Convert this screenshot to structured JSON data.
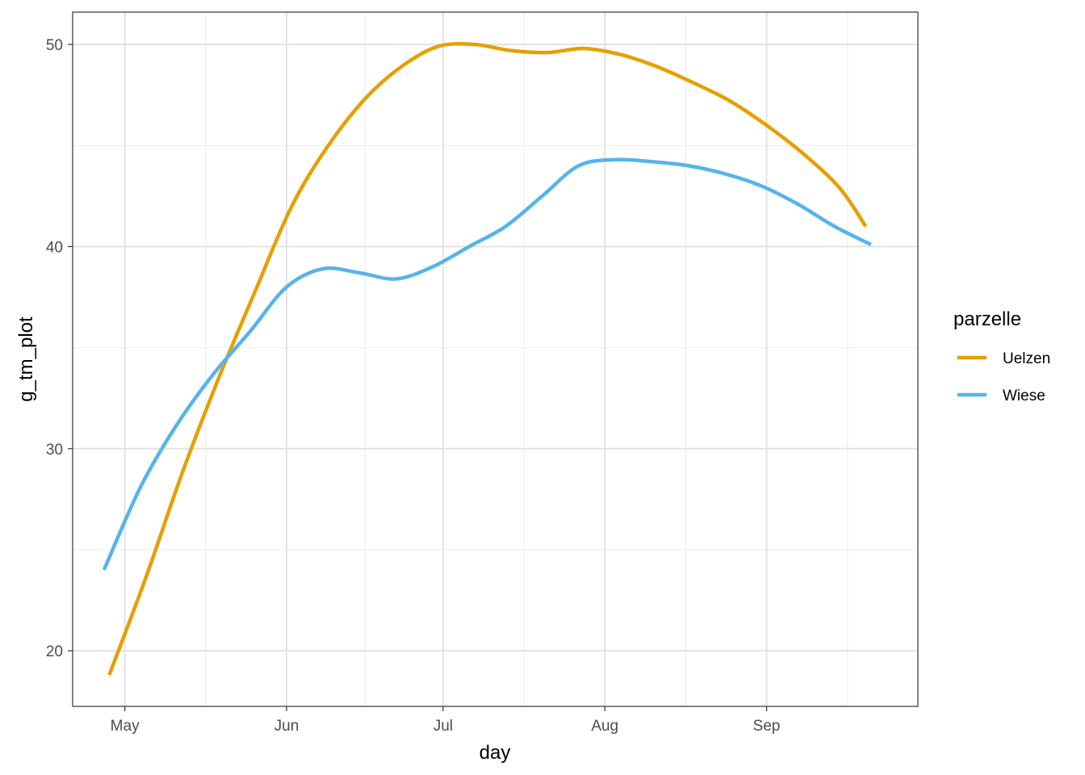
{
  "chart_data": {
    "type": "line",
    "xlabel": "day",
    "ylabel": "g_tm_plot",
    "x_type": "date",
    "x_ticks": [
      {
        "date": "2022-05-01",
        "label": "May"
      },
      {
        "date": "2022-06-01",
        "label": "Jun"
      },
      {
        "date": "2022-07-01",
        "label": "Jul"
      },
      {
        "date": "2022-08-01",
        "label": "Aug"
      },
      {
        "date": "2022-09-01",
        "label": "Sep"
      }
    ],
    "xlim": [
      "2022-04-21",
      "2022-09-30"
    ],
    "y_ticks": [
      20,
      30,
      40,
      50
    ],
    "ylim": [
      17.25,
      51.6
    ],
    "grid": true,
    "legend": {
      "title": "parzelle",
      "position": "right"
    },
    "series": [
      {
        "name": "Uelzen",
        "color": "#E69F00",
        "points": [
          [
            "2022-04-28",
            18.8
          ],
          [
            "2022-05-05",
            23.6
          ],
          [
            "2022-05-12",
            28.8
          ],
          [
            "2022-05-19",
            33.5
          ],
          [
            "2022-05-26",
            37.8
          ],
          [
            "2022-06-02",
            42.0
          ],
          [
            "2022-06-09",
            45.0
          ],
          [
            "2022-06-16",
            47.3
          ],
          [
            "2022-06-23",
            48.9
          ],
          [
            "2022-06-30",
            49.9
          ],
          [
            "2022-07-07",
            50.0
          ],
          [
            "2022-07-14",
            49.7
          ],
          [
            "2022-07-21",
            49.6
          ],
          [
            "2022-07-28",
            49.8
          ],
          [
            "2022-08-04",
            49.5
          ],
          [
            "2022-08-11",
            48.9
          ],
          [
            "2022-08-18",
            48.1
          ],
          [
            "2022-08-25",
            47.2
          ],
          [
            "2022-09-01",
            46.0
          ],
          [
            "2022-09-08",
            44.6
          ],
          [
            "2022-09-15",
            42.9
          ],
          [
            "2022-09-20",
            41.0
          ]
        ]
      },
      {
        "name": "Wiese",
        "color": "#56B4E9",
        "points": [
          [
            "2022-04-27",
            24.0
          ],
          [
            "2022-05-04",
            28.1
          ],
          [
            "2022-05-11",
            31.2
          ],
          [
            "2022-05-18",
            33.7
          ],
          [
            "2022-05-25",
            35.8
          ],
          [
            "2022-06-01",
            38.0
          ],
          [
            "2022-06-08",
            38.9
          ],
          [
            "2022-06-15",
            38.7
          ],
          [
            "2022-06-22",
            38.4
          ],
          [
            "2022-06-29",
            39.0
          ],
          [
            "2022-07-06",
            40.0
          ],
          [
            "2022-07-13",
            41.0
          ],
          [
            "2022-07-20",
            42.5
          ],
          [
            "2022-07-27",
            44.0
          ],
          [
            "2022-08-03",
            44.3
          ],
          [
            "2022-08-10",
            44.2
          ],
          [
            "2022-08-17",
            44.0
          ],
          [
            "2022-08-24",
            43.6
          ],
          [
            "2022-08-31",
            43.0
          ],
          [
            "2022-09-07",
            42.1
          ],
          [
            "2022-09-14",
            41.0
          ],
          [
            "2022-09-21",
            40.1
          ]
        ]
      }
    ]
  }
}
